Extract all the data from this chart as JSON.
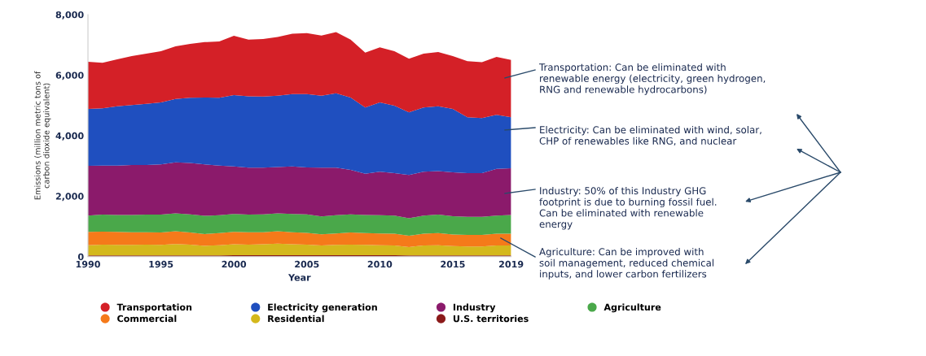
{
  "chart_data": {
    "type": "area",
    "stacked": true,
    "x": [
      1990,
      1991,
      1992,
      1993,
      1994,
      1995,
      1996,
      1997,
      1998,
      1999,
      2000,
      2001,
      2002,
      2003,
      2004,
      2005,
      2006,
      2007,
      2008,
      2009,
      2010,
      2011,
      2012,
      2013,
      2014,
      2015,
      2016,
      2017,
      2018,
      2019
    ],
    "xlabel": "Year",
    "ylabel": "Emissions (million metric tons of\ncarbon dioxide equivalent)",
    "xlim": [
      1990,
      2019
    ],
    "xticks": [
      1990,
      1995,
      2000,
      2005,
      2010,
      2015,
      2019
    ],
    "ylim": [
      0,
      8000
    ],
    "yticks": [
      {
        "value": 0,
        "label": "0"
      },
      {
        "value": 2000,
        "label": "2,000"
      },
      {
        "value": 4000,
        "label": "4,000"
      },
      {
        "value": 6000,
        "label": "6,000"
      },
      {
        "value": 8000,
        "label": "8,000"
      }
    ],
    "grid": false,
    "legend": "bottom",
    "series": [
      {
        "name": "U.S. territories",
        "color": "#8b1a1a",
        "values": [
          40,
          40,
          40,
          40,
          40,
          40,
          40,
          40,
          40,
          40,
          50,
          50,
          50,
          50,
          50,
          50,
          50,
          50,
          50,
          50,
          50,
          50,
          40,
          40,
          40,
          40,
          40,
          40,
          40,
          40
        ]
      },
      {
        "name": "Residential",
        "color": "#d4b81c",
        "values": [
          340,
          360,
          350,
          350,
          360,
          350,
          380,
          360,
          320,
          340,
          360,
          350,
          360,
          380,
          360,
          350,
          320,
          340,
          350,
          340,
          330,
          320,
          280,
          330,
          340,
          310,
          300,
          300,
          330,
          330
        ]
      },
      {
        "name": "Commercial",
        "color": "#f57a1a",
        "values": [
          440,
          430,
          430,
          420,
          410,
          410,
          420,
          400,
          390,
          400,
          410,
          410,
          400,
          410,
          400,
          390,
          370,
          380,
          400,
          390,
          390,
          390,
          370,
          390,
          400,
          380,
          380,
          380,
          390,
          390
        ]
      },
      {
        "name": "Agriculture",
        "color": "#4aa84a",
        "values": [
          540,
          560,
          560,
          570,
          580,
          590,
          590,
          600,
          600,
          590,
          590,
          580,
          590,
          590,
          600,
          610,
          590,
          600,
          600,
          600,
          600,
          600,
          580,
          600,
          610,
          610,
          600,
          600,
          600,
          620
        ]
      },
      {
        "name": "Industry",
        "color": "#8b1a6b",
        "values": [
          1640,
          1620,
          1630,
          1650,
          1640,
          1660,
          1690,
          1700,
          1700,
          1640,
          1570,
          1550,
          1540,
          1530,
          1570,
          1550,
          1610,
          1570,
          1470,
          1360,
          1440,
          1400,
          1430,
          1450,
          1440,
          1450,
          1440,
          1440,
          1540,
          1540
        ]
      },
      {
        "name": "Electricity generation",
        "color": "#1f4fbf",
        "values": [
          1880,
          1890,
          1960,
          1980,
          2020,
          2050,
          2090,
          2150,
          2210,
          2240,
          2360,
          2360,
          2350,
          2360,
          2390,
          2420,
          2380,
          2460,
          2390,
          2190,
          2290,
          2230,
          2070,
          2120,
          2140,
          2090,
          1850,
          1820,
          1790,
          1690
        ]
      },
      {
        "name": "Transportation",
        "color": "#d42027",
        "values": [
          1560,
          1510,
          1550,
          1620,
          1660,
          1690,
          1740,
          1780,
          1830,
          1860,
          1960,
          1870,
          1900,
          1940,
          2000,
          2020,
          1990,
          2020,
          1910,
          1810,
          1820,
          1800,
          1770,
          1780,
          1790,
          1750,
          1850,
          1850,
          1910,
          1890
        ]
      }
    ],
    "annotations": [
      "Transportation: Can be eliminated with\nrenewable energy (electricity, green hydrogen,\nRNG and renewable hydrocarbons)",
      "Electricity: Can be eliminated with wind, solar,\nCHP of renewables like RNG, and nuclear",
      "Industry: 50% of this Industry GHG\nfootprint is due to burning fossil fuel.\nCan be eliminated with renewable\nenergy",
      "Agriculture: Can be improved with\nsoil management, reduced chemical\ninputs, and lower carbon fertilizers"
    ]
  }
}
